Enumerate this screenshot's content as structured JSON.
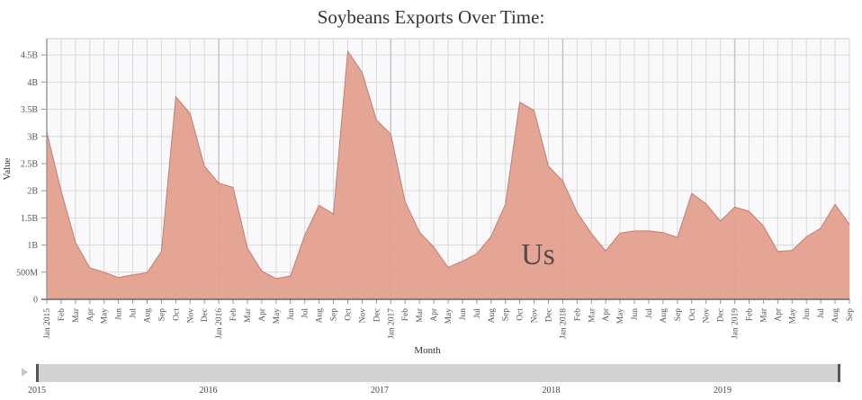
{
  "page": {
    "title": "Soybeans Exports Over Time:",
    "overlay_label": "Us"
  },
  "colors": {
    "area_fill": "#e3a08e",
    "area_stroke": "#b5837a",
    "grid": "#d9d9d9",
    "plot_bg": "#f9f9fb",
    "slider_bg": "#d2d2d2",
    "slider_handle": "#555555"
  },
  "slider": {
    "play_icon": "play-icon",
    "year_labels": [
      "2015",
      "2016",
      "2017",
      "2018",
      "2019"
    ]
  },
  "chart_data": {
    "type": "area",
    "title": "Soybeans Exports Over Time:",
    "xlabel": "Month",
    "ylabel": "Value",
    "ylim": [
      0,
      4800000000.0
    ],
    "grid": true,
    "legend": null,
    "annotation": "Us",
    "y_ticks": [
      "0",
      "500M",
      "1B",
      "1.5B",
      "2B",
      "2.5B",
      "3B",
      "3.5B",
      "4B",
      "4.5B"
    ],
    "x": [
      "Jan 2015",
      "Feb",
      "Mar",
      "Apr",
      "May",
      "Jun",
      "Jul",
      "Aug",
      "Sep",
      "Oct",
      "Nov",
      "Dec",
      "Jan 2016",
      "Feb",
      "Mar",
      "Apr",
      "May",
      "Jun",
      "Jul",
      "Aug",
      "Sep",
      "Oct",
      "Nov",
      "Dec",
      "Jan 2017",
      "Feb",
      "Mar",
      "Apr",
      "May",
      "Jun",
      "Jul",
      "Aug",
      "Sep",
      "Oct",
      "Nov",
      "Dec",
      "Jan 2018",
      "Feb",
      "Mar",
      "Apr",
      "May",
      "Jun",
      "Jul",
      "Aug",
      "Sep",
      "Oct",
      "Nov",
      "Dec",
      "Jan 2019",
      "Feb",
      "Mar",
      "Apr",
      "May",
      "Jun",
      "Jul",
      "Aug",
      "Sep"
    ],
    "series": [
      {
        "name": "Us",
        "values": [
          3080000000.0,
          2000000000.0,
          1050000000.0,
          580000000.0,
          500000000.0,
          400000000.0,
          450000000.0,
          490000000.0,
          880000000.0,
          3730000000.0,
          3420000000.0,
          2450000000.0,
          2140000000.0,
          2060000000.0,
          940000000.0,
          520000000.0,
          380000000.0,
          430000000.0,
          1180000000.0,
          1730000000.0,
          1570000000.0,
          4570000000.0,
          4180000000.0,
          3300000000.0,
          3040000000.0,
          1800000000.0,
          1240000000.0,
          960000000.0,
          590000000.0,
          700000000.0,
          840000000.0,
          1160000000.0,
          1750000000.0,
          3630000000.0,
          3480000000.0,
          2450000000.0,
          2180000000.0,
          1600000000.0,
          1210000000.0,
          890000000.0,
          1220000000.0,
          1260000000.0,
          1260000000.0,
          1230000000.0,
          1140000000.0,
          1950000000.0,
          1760000000.0,
          1440000000.0,
          1700000000.0,
          1620000000.0,
          1350000000.0,
          880000000.0,
          900000000.0,
          1150000000.0,
          1310000000.0,
          1750000000.0,
          1380000000.0
        ]
      }
    ]
  }
}
